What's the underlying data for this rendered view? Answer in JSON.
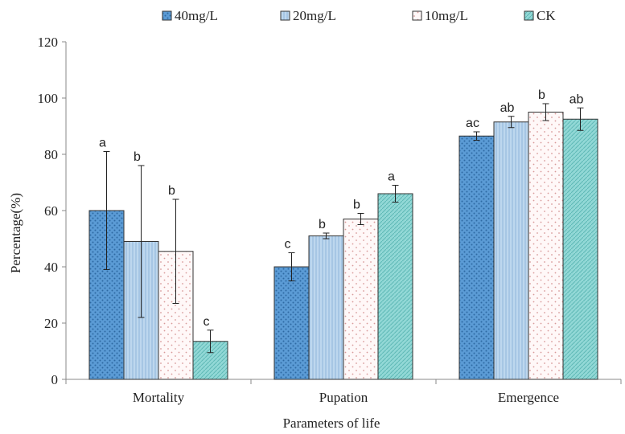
{
  "chart_data": {
    "type": "bar",
    "title": "",
    "xlabel": "Parameters of life",
    "ylabel": "Percentage(%)",
    "ylim": [
      0,
      120
    ],
    "yticks": [
      0,
      20,
      40,
      60,
      80,
      100,
      120
    ],
    "grid": false,
    "legend_position": "top",
    "categories": [
      "Mortality",
      "Pupation",
      "Emergence"
    ],
    "series": [
      {
        "name": "40mg/L",
        "color": "#5b9bd5",
        "pattern": "dots",
        "values": [
          60,
          40,
          86.5
        ],
        "errors": [
          21,
          5,
          1.5
        ],
        "letters": [
          "a",
          "c",
          "ac"
        ]
      },
      {
        "name": "20mg/L",
        "color": "#bdd7ee",
        "pattern": "vertical-lines",
        "values": [
          49,
          51,
          91.5
        ],
        "errors": [
          27,
          1,
          2
        ],
        "letters": [
          "b",
          "b",
          "ab"
        ]
      },
      {
        "name": "10mg/L",
        "color": "#fbe9e9",
        "pattern": "sparse-dots",
        "values": [
          45.5,
          57,
          95
        ],
        "errors": [
          18.5,
          2,
          3
        ],
        "letters": [
          "b",
          "b",
          "b"
        ]
      },
      {
        "name": "CK",
        "color": "#92d8d6",
        "pattern": "diagonal-lines",
        "values": [
          13.5,
          66,
          92.5
        ],
        "errors": [
          4,
          3,
          4
        ],
        "letters": [
          "c",
          "a",
          "ab"
        ]
      }
    ]
  }
}
